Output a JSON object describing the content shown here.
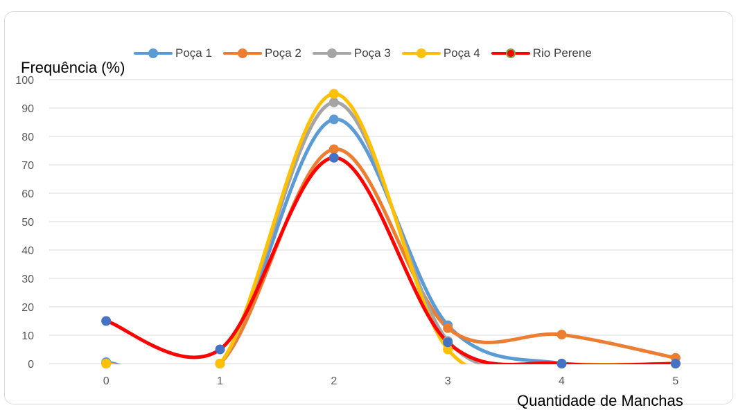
{
  "chart_data": {
    "type": "line",
    "ylabel": "Frequência (%)",
    "xlabel": "Quantidade de Manchas",
    "x": [
      0,
      1,
      2,
      3,
      4,
      5
    ],
    "ylim": [
      0,
      100
    ],
    "yticks": [
      0,
      10,
      20,
      30,
      40,
      50,
      60,
      70,
      80,
      90,
      100
    ],
    "grid": true,
    "legend_position": "top",
    "smooth": true,
    "series": [
      {
        "name": "Poça 1",
        "color": "#5b9bd5",
        "values": [
          0.5,
          0,
          86,
          13.5,
          0,
          0
        ]
      },
      {
        "name": "Poça 2",
        "color": "#ed7d31",
        "values": [
          0,
          0,
          75.5,
          12.5,
          10.2,
          2
        ]
      },
      {
        "name": "Poça 3",
        "color": "#a5a5a5",
        "values": [
          0,
          0,
          92,
          8,
          0,
          0
        ]
      },
      {
        "name": "Poça 4",
        "color": "#ffc000",
        "values": [
          0,
          0,
          95,
          5,
          0,
          0
        ]
      },
      {
        "name": "Rio Perene",
        "color": "#ff0000",
        "marker_color": "#4472c4",
        "values": [
          15,
          5,
          72.5,
          7.5,
          0,
          0
        ]
      }
    ]
  }
}
